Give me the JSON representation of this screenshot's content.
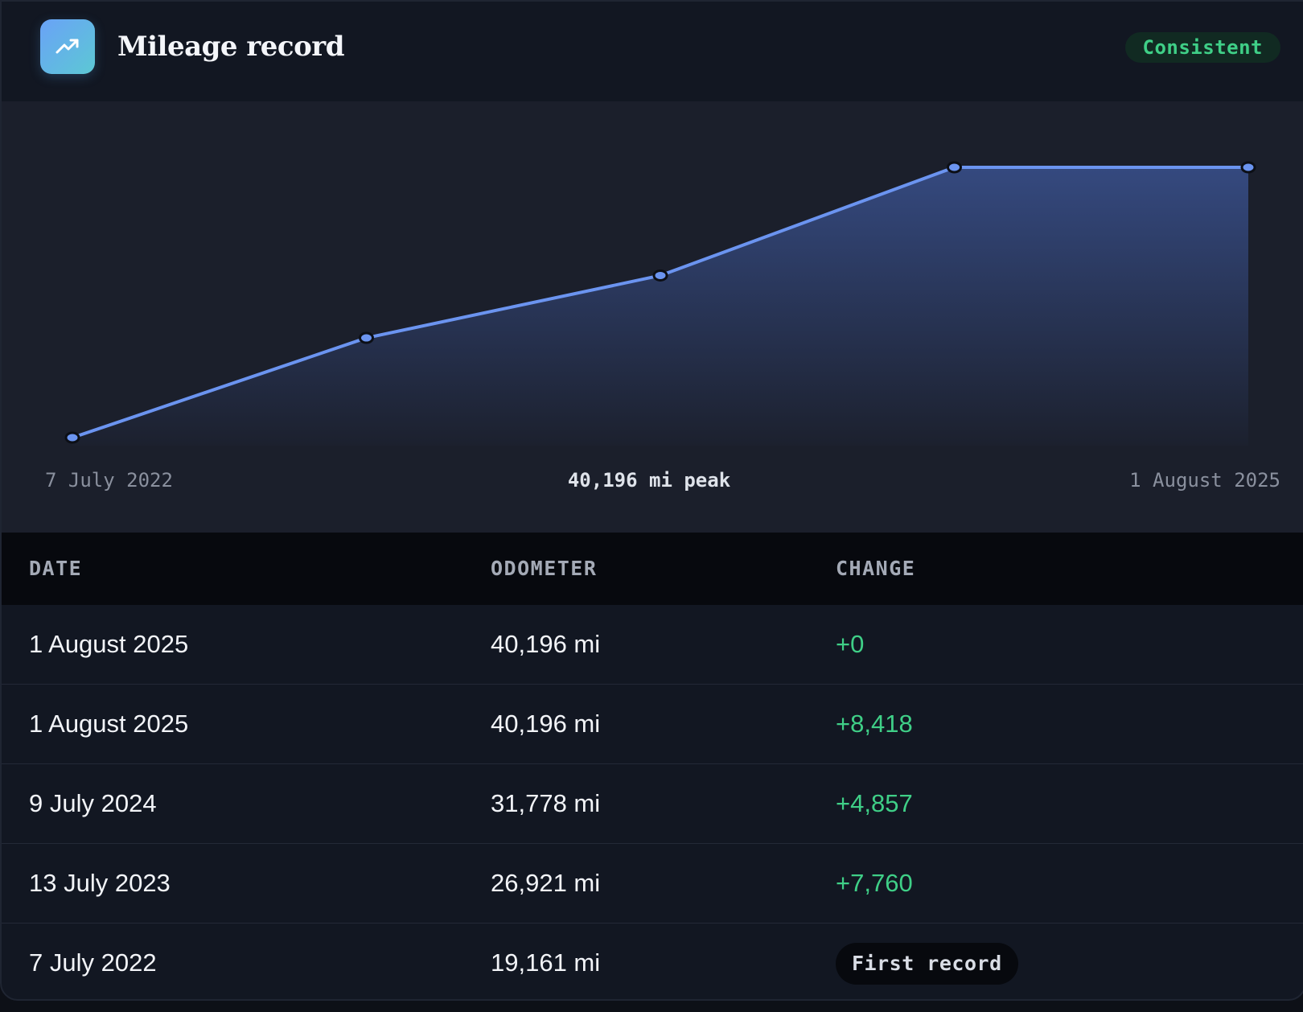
{
  "header": {
    "title": "Mileage record",
    "icon": "trend-up-icon",
    "status_badge": "Consistent",
    "accent_color": "#3fcf87"
  },
  "chart_data": {
    "type": "area",
    "x": [
      "7 July 2022",
      "13 July 2023",
      "9 July 2024",
      "1 August 2025",
      "1 August 2025"
    ],
    "series": [
      {
        "values": [
          19161,
          26921,
          31778,
          40196,
          40196
        ]
      }
    ],
    "line_color": "#6b94f0",
    "start_label": "7 July 2022",
    "end_label": "1 August 2025",
    "peak_label": "40,196 mi peak",
    "grid": false
  },
  "table": {
    "headers": [
      "DATE",
      "ODOMETER",
      "CHANGE"
    ],
    "rows": [
      {
        "date": "1 August 2025",
        "odometer": "40,196 mi",
        "change": "+0"
      },
      {
        "date": "1 August 2025",
        "odometer": "40,196 mi",
        "change": "+8,418"
      },
      {
        "date": "9 July 2024",
        "odometer": "31,778 mi",
        "change": "+4,857"
      },
      {
        "date": "13 July 2023",
        "odometer": "26,921 mi",
        "change": "+7,760"
      },
      {
        "date": "7 July 2022",
        "odometer": "19,161 mi",
        "change": "First record"
      }
    ]
  }
}
